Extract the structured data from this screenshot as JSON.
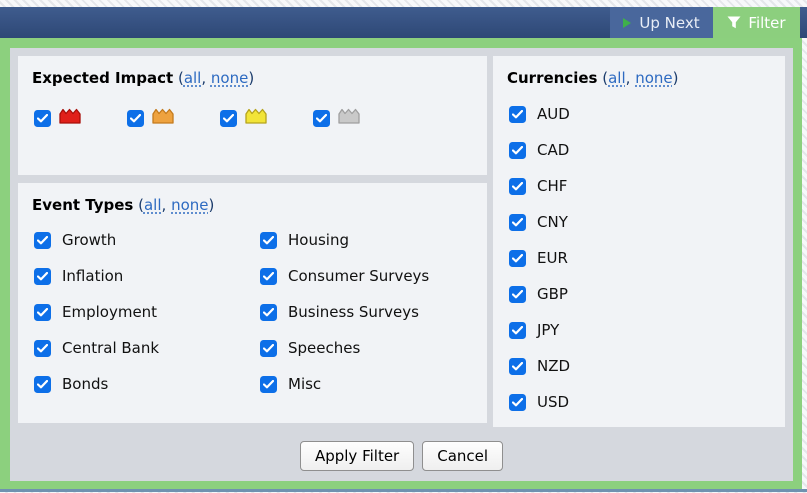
{
  "topbar": {
    "up_next": "Up Next",
    "filter": "Filter"
  },
  "punctuation": {
    "open": "(",
    "sep": ", ",
    "close": ")"
  },
  "filter_panel": {
    "expected_impact": {
      "title": "Expected Impact",
      "all_link": "all",
      "none_link": "none",
      "options": [
        {
          "name": "high-impact",
          "checked": true,
          "fill": "#e0201a",
          "stroke": "#a80f09"
        },
        {
          "name": "medium-impact",
          "checked": true,
          "fill": "#eea23f",
          "stroke": "#c47a1c"
        },
        {
          "name": "low-impact",
          "checked": true,
          "fill": "#f2e438",
          "stroke": "#b5a31c"
        },
        {
          "name": "non-economic",
          "checked": true,
          "fill": "#c9c9c9",
          "stroke": "#9f9f9f"
        }
      ]
    },
    "event_types": {
      "title": "Event Types",
      "all_link": "all",
      "none_link": "none",
      "column1": [
        {
          "label": "Growth",
          "checked": true
        },
        {
          "label": "Inflation",
          "checked": true
        },
        {
          "label": "Employment",
          "checked": true
        },
        {
          "label": "Central Bank",
          "checked": true
        },
        {
          "label": "Bonds",
          "checked": true
        }
      ],
      "column2": [
        {
          "label": "Housing",
          "checked": true
        },
        {
          "label": "Consumer Surveys",
          "checked": true
        },
        {
          "label": "Business Surveys",
          "checked": true
        },
        {
          "label": "Speeches",
          "checked": true
        },
        {
          "label": "Misc",
          "checked": true
        }
      ]
    },
    "currencies": {
      "title": "Currencies",
      "all_link": "all",
      "none_link": "none",
      "options": [
        {
          "label": "AUD",
          "checked": true
        },
        {
          "label": "CAD",
          "checked": true
        },
        {
          "label": "CHF",
          "checked": true
        },
        {
          "label": "CNY",
          "checked": true
        },
        {
          "label": "EUR",
          "checked": true
        },
        {
          "label": "GBP",
          "checked": true
        },
        {
          "label": "JPY",
          "checked": true
        },
        {
          "label": "NZD",
          "checked": true
        },
        {
          "label": "USD",
          "checked": true
        }
      ]
    },
    "apply_button": "Apply Filter",
    "cancel_button": "Cancel"
  },
  "colors": {
    "accent_green": "#8cd07e",
    "topbar_blue": "#35507f",
    "checkbox_blue": "#0d6fe8",
    "panel_gray": "#d5d8de",
    "box_bg": "#f1f3f6",
    "link_blue": "#2d6ac1"
  }
}
